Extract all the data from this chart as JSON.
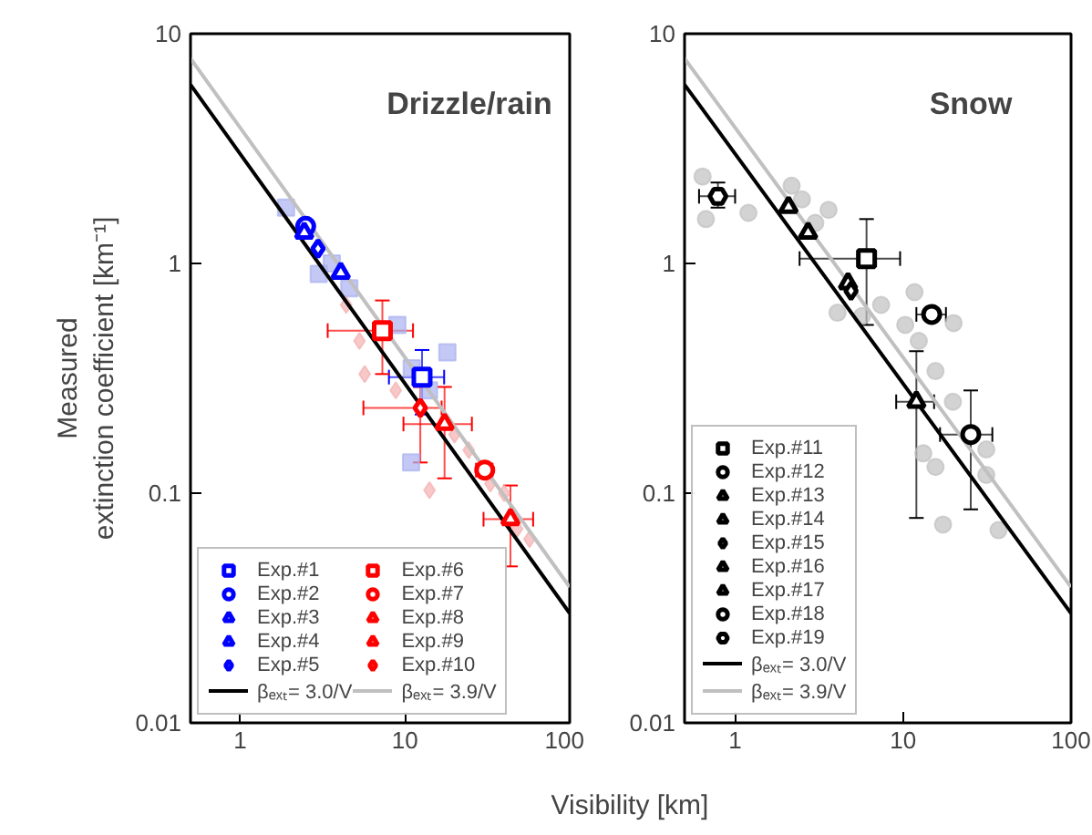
{
  "chart_data": [
    {
      "type": "scatter",
      "title": "Drizzle/rain",
      "xlabel": "Visibility [km]",
      "ylabel": "Measured\nextinction coefficient [km⁻¹]",
      "log": "xy",
      "grid": false,
      "legend": "bottom left",
      "xlim": [
        0.5,
        100
      ],
      "ylim": [
        0.01,
        10
      ],
      "xticks": [
        1,
        10,
        100
      ],
      "yticks": [
        0.01,
        0.1,
        1,
        10
      ],
      "series": [
        {
          "color": "#aab0f0",
          "marker": "square",
          "x": [
            1.9,
            3.6,
            4.6,
            3.0,
            9.0,
            18.1,
            10.9,
            11,
            14
          ],
          "values": [
            1.75,
            1.0,
            0.78,
            0.9,
            0.54,
            0.41,
            0.136,
            0.35,
            0.28
          ]
        },
        {
          "color": "#f5b0b0",
          "marker": "diamond",
          "x": [
            4.4,
            5.3,
            5.7,
            8.8,
            14.1,
            24.4,
            40,
            57,
            20,
            33,
            48
          ],
          "values": [
            0.66,
            0.46,
            0.33,
            0.28,
            0.103,
            0.154,
            0.1,
            0.063,
            0.18,
            0.11,
            0.07
          ]
        },
        {
          "type": "line",
          "name": "βₑₓₜ= 3.0/V",
          "color": "#000000",
          "x": [
            0.5,
            100
          ],
          "values": [
            6,
            0.03
          ]
        },
        {
          "type": "line",
          "name": "βₑₓₜ= 3.9/V",
          "color": "#c0c0c0",
          "x": [
            0.5,
            100
          ],
          "values": [
            7.8,
            0.039
          ]
        },
        {
          "name": "Exp.#1",
          "color": "#0000ff",
          "marker": "square",
          "x": [
            12.7
          ],
          "values": [
            0.32
          ],
          "errors": [
            [
              0.22,
              0.42
            ]
          ],
          "xerrors": [
            [
              8.0,
              17.3
            ]
          ]
        },
        {
          "name": "Exp.#2",
          "color": "#0000ff",
          "marker": "circle",
          "x": [
            2.5
          ],
          "values": [
            1.45
          ]
        },
        {
          "name": "Exp.#3",
          "color": "#0000ff",
          "marker": "triangle",
          "x": [
            2.45
          ],
          "values": [
            1.36
          ]
        },
        {
          "name": "Exp.#4",
          "color": "#0000ff",
          "marker": "triangle",
          "x": [
            4.08
          ],
          "values": [
            0.91
          ]
        },
        {
          "name": "Exp.#5",
          "color": "#0000ff",
          "marker": "diamond",
          "x": [
            2.97
          ],
          "values": [
            1.16
          ]
        },
        {
          "name": "Exp.#6",
          "color": "#ff0000",
          "marker": "square",
          "x": [
            7.3
          ],
          "values": [
            0.51
          ],
          "errors": [
            [
              0.33,
              0.69
            ]
          ],
          "xerrors": [
            [
              3.4,
              11.2
            ]
          ]
        },
        {
          "name": "Exp.#7",
          "color": "#ff0000",
          "marker": "circle",
          "x": [
            30.5
          ],
          "values": [
            0.126
          ],
          "xerrors": [
            [
              27,
              34
            ]
          ]
        },
        {
          "name": "Exp.#8",
          "color": "#ff0000",
          "marker": "triangle",
          "x": [
            43.7
          ],
          "values": [
            0.077
          ],
          "errors": [
            [
              0.048,
              0.108
            ]
          ],
          "xerrors": [
            [
              30,
              60
            ]
          ]
        },
        {
          "name": "Exp.#9",
          "color": "#ff0000",
          "marker": "triangle",
          "x": [
            17.4
          ],
          "values": [
            0.2
          ],
          "errors": [
            [
              0.116,
              0.29
            ]
          ],
          "xerrors": [
            [
              9.8,
              25.5
            ]
          ]
        },
        {
          "name": "Exp.#10",
          "color": "#ff0000",
          "marker": "diamond",
          "x": [
            12.4
          ],
          "values": [
            0.235
          ],
          "errors": [
            [
              0.136,
              0.29
            ]
          ],
          "xerrors": [
            [
              5.6,
              16.7
            ]
          ]
        }
      ]
    },
    {
      "type": "scatter",
      "title": "Snow",
      "log": "xy",
      "grid": false,
      "legend": "bottom left",
      "xlim": [
        0.5,
        100
      ],
      "ylim": [
        0.01,
        10
      ],
      "xticks": [
        1,
        10,
        100
      ],
      "yticks": [
        0.01,
        0.1,
        1,
        10
      ],
      "series": [
        {
          "color": "#c0c0c0",
          "marker": "circle",
          "x": [
            0.64,
            0.67,
            1.2,
            2.17,
            3.6,
            4.07,
            7.4,
            11.7,
            10.3,
            12.4,
            15.6,
            19.8,
            20,
            13.2,
            15.6,
            17.3,
            31.3,
            31.3,
            37,
            5.7,
            2.5,
            3.0
          ],
          "values": [
            2.39,
            1.56,
            1.66,
            2.18,
            1.71,
            0.61,
            0.66,
            0.75,
            0.54,
            0.46,
            0.34,
            0.25,
            0.55,
            0.149,
            0.13,
            0.073,
            0.155,
            0.12,
            0.069,
            0.59,
            1.9,
            1.5
          ]
        },
        {
          "type": "line",
          "name": "βₑₓₜ= 3.0/V",
          "color": "#000000",
          "x": [
            0.5,
            100
          ],
          "values": [
            6,
            0.03
          ]
        },
        {
          "type": "line",
          "name": "βₑₓₜ= 3.9/V",
          "color": "#c0c0c0",
          "x": [
            0.5,
            100
          ],
          "values": [
            7.8,
            0.039
          ]
        },
        {
          "name": "Exp.#11",
          "color": "#000000",
          "marker": "square",
          "x": [
            6.06
          ],
          "values": [
            1.05
          ],
          "errors": [
            [
              0.54,
              1.56
            ]
          ],
          "xerrors": [
            [
              2.42,
              9.6
            ]
          ]
        },
        {
          "name": "Exp.#12",
          "color": "#000000",
          "marker": "circle",
          "x": [
            25.3
          ],
          "values": [
            0.18
          ],
          "errors": [
            [
              0.085,
              0.28
            ]
          ],
          "xerrors": [
            [
              16.6,
              34
            ]
          ]
        },
        {
          "name": "Exp.#13",
          "color": "#000000",
          "marker": "triangle",
          "x": [
            12.0
          ],
          "values": [
            0.25
          ],
          "errors": [
            [
              0.078,
              0.415
            ]
          ],
          "xerrors": [
            [
              9.1,
              15.3
            ]
          ]
        },
        {
          "name": "Exp.#14",
          "color": "#000000",
          "marker": "triangle",
          "x": [
            4.7
          ],
          "values": [
            0.82
          ]
        },
        {
          "name": "Exp.#15",
          "color": "#000000",
          "marker": "diamond",
          "x": [
            4.9
          ],
          "values": [
            0.76
          ]
        },
        {
          "name": "Exp.#16",
          "color": "#000000",
          "marker": "triangle",
          "x": [
            2.72
          ],
          "values": [
            1.36
          ]
        },
        {
          "name": "Exp.#17",
          "color": "#000000",
          "marker": "triangle",
          "x": [
            2.08
          ],
          "values": [
            1.76
          ]
        },
        {
          "name": "Exp.#18",
          "color": "#000000",
          "marker": "circle",
          "x": [
            14.8
          ],
          "values": [
            0.6
          ],
          "xerrors": [
            [
              12,
              18
            ]
          ]
        },
        {
          "name": "Exp.#19",
          "color": "#000000",
          "x": [
            0.79
          ],
          "values": [
            1.96
          ],
          "errors": [
            [
              1.75,
              2.25
            ]
          ],
          "xerrors": [
            [
              0.61,
              1.0
            ]
          ]
        }
      ]
    }
  ]
}
